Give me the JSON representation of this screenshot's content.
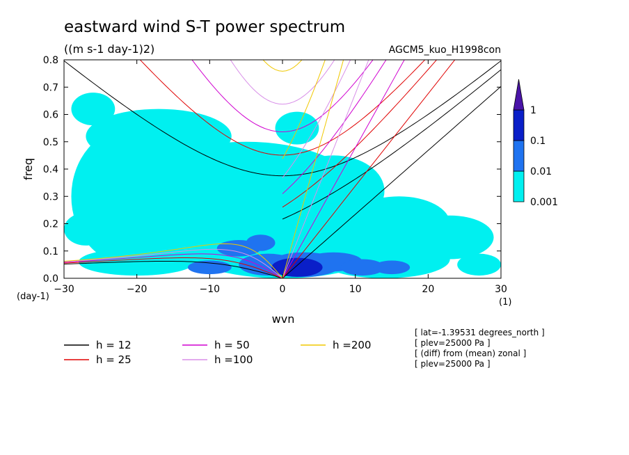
{
  "title": "eastward wind S-T power spectrum",
  "units": "((m s-1 day-1)2)",
  "model": "AGCM5_kuo_H1998con",
  "chart_data": {
    "type": "heatmap",
    "xlabel": "wvn",
    "ylabel": "freq",
    "x_unit": "(1)",
    "y_unit": "(day-1)",
    "xlim": [
      -30,
      30
    ],
    "ylim": [
      0,
      0.8
    ],
    "xticks": [
      -30,
      -20,
      -10,
      0,
      10,
      20,
      30
    ],
    "yticks": [
      "0.0",
      "0.1",
      "0.2",
      "0.3",
      "0.4",
      "0.5",
      "0.6",
      "0.7",
      "0.8"
    ],
    "grid": false,
    "colorbar": {
      "levels": [
        "0.001",
        "0.01",
        "0.1",
        "1"
      ],
      "colors": [
        "#00f0f0",
        "#1f73f0",
        "#0a1fc8",
        "#4a14a8"
      ],
      "extend": "max"
    },
    "blobs": [
      {
        "x": 2,
        "y": 0.04,
        "rx": 3.5,
        "ry": 0.035,
        "level": 3
      },
      {
        "x": -2,
        "y": 0.05,
        "rx": 4,
        "ry": 0.04,
        "level": 2
      },
      {
        "x": 3,
        "y": 0.05,
        "rx": 5,
        "ry": 0.045,
        "level": 2
      },
      {
        "x": -6,
        "y": 0.11,
        "rx": 3,
        "ry": 0.03,
        "level": 2
      },
      {
        "x": 7,
        "y": 0.06,
        "rx": 4,
        "ry": 0.035,
        "level": 2
      },
      {
        "x": 11,
        "y": 0.04,
        "rx": 3,
        "ry": 0.03,
        "level": 2
      },
      {
        "x": -10,
        "y": 0.04,
        "rx": 3,
        "ry": 0.025,
        "level": 2
      },
      {
        "x": 15,
        "y": 0.04,
        "rx": 2.5,
        "ry": 0.025,
        "level": 2
      },
      {
        "x": -3,
        "y": 0.13,
        "rx": 2,
        "ry": 0.03,
        "level": 2
      },
      {
        "x": 0,
        "y": 0.12,
        "rx": 14,
        "ry": 0.12,
        "level": 1
      },
      {
        "x": -11,
        "y": 0.18,
        "rx": 12,
        "ry": 0.11,
        "level": 1
      },
      {
        "x": 14,
        "y": 0.07,
        "rx": 9,
        "ry": 0.07,
        "level": 1
      },
      {
        "x": -20,
        "y": 0.06,
        "rx": 8,
        "ry": 0.05,
        "level": 1
      },
      {
        "x": -5,
        "y": 0.3,
        "rx": 16,
        "ry": 0.2,
        "level": 1
      },
      {
        "x": -21,
        "y": 0.3,
        "rx": 8,
        "ry": 0.25,
        "level": 1
      },
      {
        "x": -17,
        "y": 0.52,
        "rx": 10,
        "ry": 0.1,
        "level": 1
      },
      {
        "x": -26,
        "y": 0.62,
        "rx": 3,
        "ry": 0.06,
        "level": 1
      },
      {
        "x": -12,
        "y": 0.44,
        "rx": 6,
        "ry": 0.06,
        "level": 1
      },
      {
        "x": 7,
        "y": 0.32,
        "rx": 7,
        "ry": 0.13,
        "level": 1
      },
      {
        "x": 16,
        "y": 0.2,
        "rx": 7,
        "ry": 0.1,
        "level": 1
      },
      {
        "x": 23,
        "y": 0.15,
        "rx": 6,
        "ry": 0.08,
        "level": 1
      },
      {
        "x": 27,
        "y": 0.05,
        "rx": 3,
        "ry": 0.04,
        "level": 1
      },
      {
        "x": -27,
        "y": 0.18,
        "rx": 3,
        "ry": 0.06,
        "level": 1
      },
      {
        "x": 2,
        "y": 0.55,
        "rx": 3,
        "ry": 0.06,
        "level": 1
      }
    ],
    "dispersion_curves": [
      {
        "label": "h = 12",
        "h": 12,
        "color": "#000000"
      },
      {
        "label": "h = 25",
        "h": 25,
        "color": "#e00000"
      },
      {
        "label": "h = 50",
        "h": 50,
        "color": "#d000d0"
      },
      {
        "label": "h =100",
        "h": 100,
        "color": "#d88ee8"
      },
      {
        "label": "h =200",
        "h": 200,
        "color": "#f0c800"
      }
    ],
    "annotations": [
      "[ lat=-1.39531 degrees_north ]",
      "[ plev=25000 Pa ]",
      "[ (diff) from (mean) zonal ]",
      "[ plev=25000 Pa ]"
    ]
  }
}
